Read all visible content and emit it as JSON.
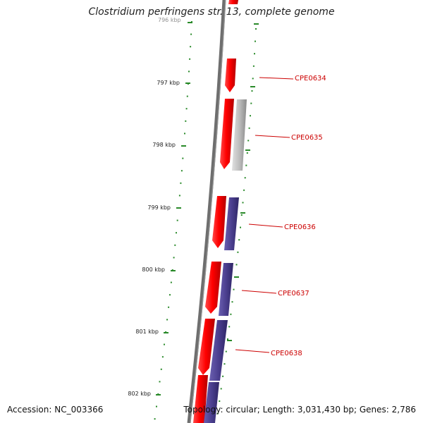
{
  "title": "Clostridium perfringens str. 13, complete genome",
  "footer": {
    "accession": "Accession: NC_003366",
    "summary": "Topology: circular; Length: 3,031,430 bp; Genes: 2,786"
  },
  "colors": {
    "backbone": "#6e6e6e",
    "ruler": "#2a8a2a",
    "gene_red": "#ff0000",
    "gene_gray": "#b8b8b8",
    "gene_blue": "#4b3f8f",
    "label": "#cc0000"
  },
  "ruler": {
    "ticks": [
      "796 kbp",
      "797 kbp",
      "798 kbp",
      "799 kbp",
      "800 kbp",
      "801 kbp",
      "802 kbp"
    ]
  },
  "genes": [
    {
      "label": "CPE0634"
    },
    {
      "label": "CPE0635"
    },
    {
      "label": "CPE0636"
    },
    {
      "label": "CPE0637"
    },
    {
      "label": "CPE0638"
    }
  ]
}
